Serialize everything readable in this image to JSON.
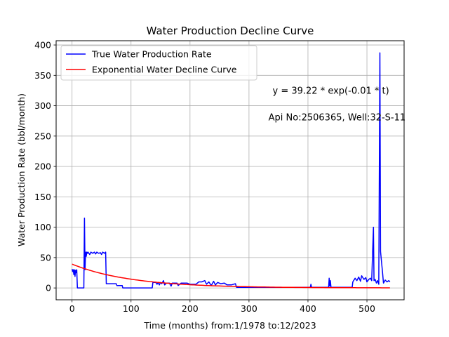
{
  "chart_data": {
    "type": "line",
    "title": "Water Production Decline Curve",
    "xlabel": "Time (months) from:1/1978 to:12/2023",
    "ylabel": "Water Production Rate (bbl/month)",
    "xlim": [
      -27,
      563
    ],
    "ylim": [
      -19.5,
      407
    ],
    "xticks": [
      0,
      100,
      200,
      300,
      400,
      500
    ],
    "yticks": [
      0,
      50,
      100,
      150,
      200,
      250,
      300,
      350,
      400
    ],
    "grid": true,
    "legend_position": "top-left",
    "annotations": [
      {
        "text": "y = 39.22 * exp(-0.01 * t)",
        "x": 340,
        "y": 320
      },
      {
        "text": "Api No:2506365, Well:32-S-11",
        "x": 333,
        "y": 276
      }
    ],
    "series": [
      {
        "name": "True Water Production Rate",
        "color": "#0000ff",
        "points": [
          [
            0,
            31
          ],
          [
            1,
            27
          ],
          [
            2,
            30
          ],
          [
            3,
            22
          ],
          [
            4,
            30
          ],
          [
            5,
            19
          ],
          [
            6,
            29
          ],
          [
            7,
            25
          ],
          [
            8,
            30
          ],
          [
            9,
            0
          ],
          [
            20,
            0
          ],
          [
            21,
            115
          ],
          [
            22,
            30
          ],
          [
            23,
            59
          ],
          [
            24,
            52
          ],
          [
            25,
            59
          ],
          [
            26,
            57
          ],
          [
            27,
            59
          ],
          [
            30,
            55
          ],
          [
            32,
            59
          ],
          [
            35,
            57
          ],
          [
            38,
            59
          ],
          [
            40,
            56
          ],
          [
            42,
            59
          ],
          [
            45,
            57
          ],
          [
            48,
            58
          ],
          [
            50,
            55
          ],
          [
            52,
            59
          ],
          [
            55,
            57
          ],
          [
            57,
            59
          ],
          [
            58,
            7
          ],
          [
            75,
            7
          ],
          [
            76,
            4
          ],
          [
            85,
            4
          ],
          [
            86,
            0
          ],
          [
            136,
            0
          ],
          [
            137,
            9
          ],
          [
            142,
            9
          ],
          [
            144,
            6
          ],
          [
            146,
            9
          ],
          [
            148,
            5
          ],
          [
            150,
            9
          ],
          [
            152,
            7
          ],
          [
            155,
            12
          ],
          [
            157,
            5
          ],
          [
            160,
            8
          ],
          [
            165,
            8
          ],
          [
            168,
            3
          ],
          [
            170,
            8
          ],
          [
            178,
            8
          ],
          [
            180,
            4
          ],
          [
            185,
            8
          ],
          [
            195,
            8
          ],
          [
            200,
            6
          ],
          [
            210,
            6
          ],
          [
            215,
            10
          ],
          [
            220,
            10
          ],
          [
            225,
            12
          ],
          [
            228,
            6
          ],
          [
            232,
            10
          ],
          [
            236,
            4
          ],
          [
            240,
            11
          ],
          [
            243,
            5
          ],
          [
            247,
            9
          ],
          [
            252,
            7
          ],
          [
            258,
            8
          ],
          [
            263,
            5
          ],
          [
            270,
            5
          ],
          [
            277,
            7
          ],
          [
            279,
            1
          ],
          [
            300,
            1
          ],
          [
            350,
            1
          ],
          [
            404,
            1
          ],
          [
            405,
            6
          ],
          [
            406,
            1
          ],
          [
            435,
            1
          ],
          [
            436,
            16
          ],
          [
            437,
            3
          ],
          [
            438,
            12
          ],
          [
            439,
            1
          ],
          [
            475,
            1
          ],
          [
            476,
            10
          ],
          [
            480,
            16
          ],
          [
            483,
            12
          ],
          [
            486,
            18
          ],
          [
            489,
            11
          ],
          [
            491,
            20
          ],
          [
            495,
            14
          ],
          [
            498,
            17
          ],
          [
            500,
            10
          ],
          [
            503,
            14
          ],
          [
            506,
            16
          ],
          [
            508,
            12
          ],
          [
            511,
            100
          ],
          [
            512,
            12
          ],
          [
            514,
            14
          ],
          [
            516,
            8
          ],
          [
            518,
            12
          ],
          [
            520,
            6
          ],
          [
            522,
            387
          ],
          [
            523,
            60
          ],
          [
            526,
            30
          ],
          [
            528,
            8
          ],
          [
            531,
            13
          ],
          [
            534,
            10
          ],
          [
            537,
            12
          ],
          [
            539,
            10
          ]
        ]
      },
      {
        "name": "Exponential Water Decline Curve",
        "color": "#ff0000",
        "function": {
          "a": 39.22,
          "b": 0.01,
          "x_start": 0,
          "x_end": 539
        }
      }
    ]
  }
}
